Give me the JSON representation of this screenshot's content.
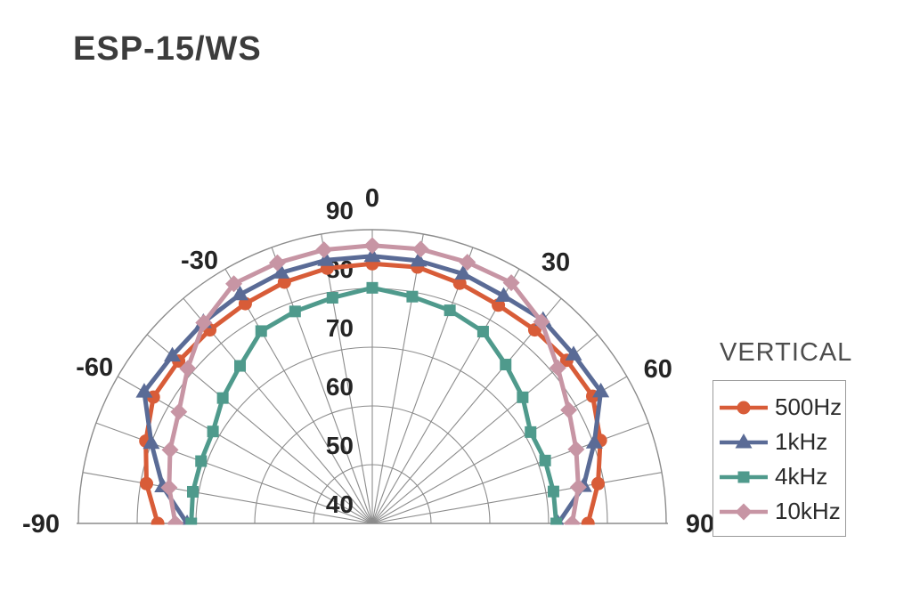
{
  "title": "ESP-15/WS",
  "chart_data": {
    "type": "polar",
    "subtype": "half-polar-directivity",
    "title": "ESP-15/WS",
    "orientation_label": "VERTICAL",
    "angle_axis": {
      "labeled_ticks_deg": [
        -90,
        -60,
        -30,
        0,
        30,
        60,
        90
      ],
      "grid_step_deg": 10,
      "range_deg": [
        -90,
        90
      ]
    },
    "radial_axis": {
      "tick_labels": [
        40,
        50,
        60,
        70,
        80,
        90
      ],
      "range": [
        40,
        90
      ],
      "grid_rings": [
        50,
        60,
        70,
        80,
        90
      ]
    },
    "grid": {
      "color": "#8c8c8c",
      "label_color": "#242424"
    },
    "angles_deg": [
      -90,
      -80,
      -70,
      -60,
      -50,
      -40,
      -30,
      -20,
      -10,
      0,
      10,
      20,
      30,
      40,
      50,
      60,
      70,
      80,
      90
    ],
    "series": [
      {
        "name": "500Hz",
        "color": "#d85c38",
        "marker": "circle",
        "values": [
          76.5,
          79.0,
          81.0,
          83.0,
          83.0,
          83.0,
          83.2,
          83.7,
          84.1,
          84.2,
          84.3,
          83.5,
          82.9,
          83.0,
          83.2,
          83.3,
          81.3,
          79.0,
          76.7
        ]
      },
      {
        "name": "1kHz",
        "color": "#5a6b96",
        "marker": "triangle",
        "values": [
          71.5,
          76.2,
          80.0,
          84.8,
          84.4,
          84.7,
          85.0,
          85.4,
          85.5,
          85.5,
          85.4,
          85.2,
          84.7,
          85.2,
          84.7,
          84.9,
          80.2,
          76.5,
          71.6
        ]
      },
      {
        "name": "4kHz",
        "color": "#4f9a8c",
        "marker": "square",
        "values": [
          70.8,
          71.0,
          71.0,
          71.3,
          73.2,
          75.0,
          77.8,
          78.4,
          79.0,
          80.1,
          79.2,
          78.6,
          77.7,
          75.3,
          73.4,
          71.1,
          71.3,
          71.3,
          71.3
        ]
      },
      {
        "name": "10kHz",
        "color": "#c795a4",
        "marker": "diamond",
        "values": [
          73.5,
          75.1,
          76.6,
          78.0,
          81.0,
          84.6,
          87.1,
          87.2,
          87.3,
          87.3,
          87.4,
          87.3,
          87.3,
          84.8,
          81.2,
          78.6,
          76.9,
          75.6,
          74.0
        ]
      }
    ],
    "legend_position": "right"
  }
}
